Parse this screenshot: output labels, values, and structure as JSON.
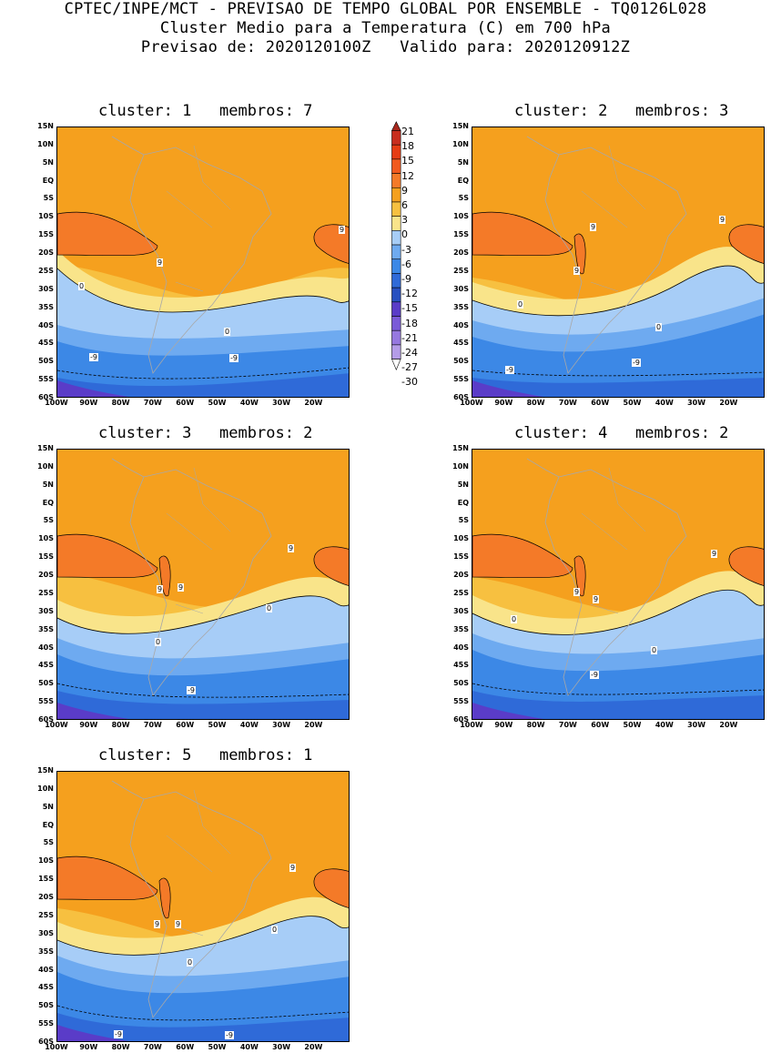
{
  "header": {
    "line1": "CPTEC/INPE/MCT - PREVISAO DE TEMPO GLOBAL POR ENSEMBLE - TQ0126L028",
    "line2": "Cluster Medio para a Temperatura (C) em 700 hPa",
    "line3": "Previsao de: 2020120100Z   Valido para: 2020120912Z"
  },
  "lat_labels": [
    "15N",
    "10N",
    "5N",
    "EQ",
    "5S",
    "10S",
    "15S",
    "20S",
    "25S",
    "30S",
    "35S",
    "40S",
    "45S",
    "50S",
    "55S",
    "60S"
  ],
  "lon_labels": [
    "100W",
    "90W",
    "80W",
    "70W",
    "60W",
    "50W",
    "40W",
    "30W",
    "20W"
  ],
  "colorbar": {
    "labels": [
      "21",
      "18",
      "15",
      "12",
      "9",
      "6",
      "3",
      "0",
      "-3",
      "-6",
      "-9",
      "-12",
      "-15",
      "-18",
      "-21",
      "-24",
      "-27",
      "-30"
    ],
    "colors": [
      "#a8281e",
      "#c82d1e",
      "#e63c14",
      "#f25a1e",
      "#f47a28",
      "#f5a01e",
      "#f7c040",
      "#f9e48a",
      "#a7cdf7",
      "#6eaaf0",
      "#3c88e6",
      "#2f6ad8",
      "#2850c0",
      "#5a3cc8",
      "#7a5ad8",
      "#9678e0",
      "#b49ce8",
      "#ffffff"
    ]
  },
  "panels": [
    {
      "title": "cluster: 1   membros: 7",
      "labels": [
        {
          "text": "9"
        },
        {
          "text": "9"
        },
        {
          "text": "0"
        },
        {
          "text": "0"
        },
        {
          "text": "-9"
        },
        {
          "text": "-9"
        }
      ]
    },
    {
      "title": "cluster: 2   membros: 3",
      "labels": [
        {
          "text": "9"
        },
        {
          "text": "9"
        },
        {
          "text": "9"
        },
        {
          "text": "0"
        },
        {
          "text": "0"
        },
        {
          "text": "-9"
        },
        {
          "text": "-9"
        }
      ]
    },
    {
      "title": "cluster: 3   membros: 2",
      "labels": [
        {
          "text": "9"
        },
        {
          "text": "9"
        },
        {
          "text": "9"
        },
        {
          "text": "0"
        },
        {
          "text": "0"
        },
        {
          "text": "-9"
        }
      ]
    },
    {
      "title": "cluster: 4   membros: 2",
      "labels": [
        {
          "text": "9"
        },
        {
          "text": "9"
        },
        {
          "text": "9"
        },
        {
          "text": "0"
        },
        {
          "text": "0"
        },
        {
          "text": "-9"
        }
      ]
    },
    {
      "title": "cluster: 5   membros: 1",
      "labels": [
        {
          "text": "9"
        },
        {
          "text": "9"
        },
        {
          "text": "9"
        },
        {
          "text": "0"
        },
        {
          "text": "0"
        },
        {
          "text": "-9"
        },
        {
          "text": "-9"
        }
      ]
    }
  ],
  "legend": {
    "nodata": "-30"
  }
}
